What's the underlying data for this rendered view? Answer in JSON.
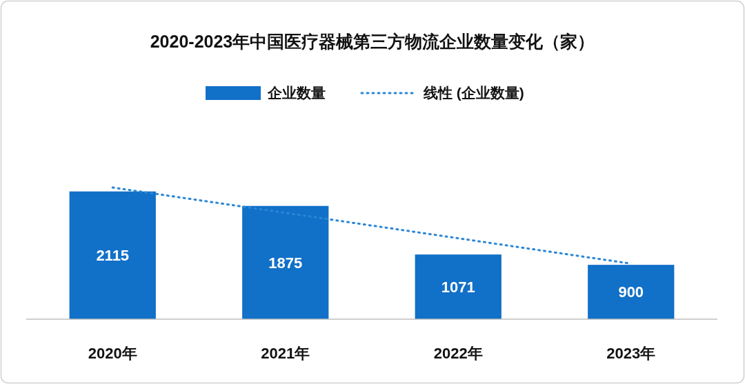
{
  "chart_data": {
    "type": "bar",
    "title": "2020-2023年中国医疗器械第三方物流企业数量变化（家）",
    "categories": [
      "2020年",
      "2021年",
      "2022年",
      "2023年"
    ],
    "series": [
      {
        "name": "企业数量",
        "color": "#1170c8",
        "values": [
          2115,
          1875,
          1071,
          900
        ],
        "value_labels": [
          "2115",
          "1875",
          "1071",
          "900"
        ]
      },
      {
        "name": "线性 (企业数量)",
        "type": "line",
        "color": "#2a86d6",
        "line_style": "dotted",
        "values": [
          2180,
          1760,
          1340,
          920
        ]
      }
    ],
    "legend": "top",
    "grid": false
  }
}
